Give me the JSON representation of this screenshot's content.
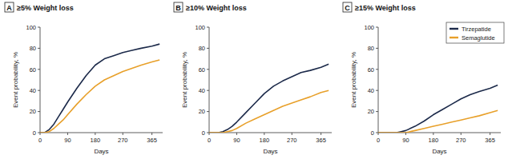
{
  "chart_data": [
    {
      "type": "line",
      "panel": "A",
      "title": "≥5% Weight loss",
      "x_label": "Days",
      "y_label": "Event probability, %",
      "x": [
        0,
        15,
        30,
        45,
        60,
        75,
        90,
        120,
        150,
        180,
        210,
        240,
        270,
        300,
        330,
        365,
        390
      ],
      "series": [
        {
          "name": "Tirzepatide",
          "color": "#1c2a4a",
          "values": [
            0,
            0,
            3,
            8,
            15,
            22,
            29,
            42,
            54,
            64,
            70,
            73,
            76,
            78,
            80,
            82,
            84
          ]
        },
        {
          "name": "Semaglutide",
          "color": "#e8a02a",
          "values": [
            0,
            0,
            1,
            4,
            8,
            12,
            17,
            27,
            36,
            44,
            50,
            54,
            58,
            61,
            64,
            67,
            69
          ]
        }
      ],
      "xlim": [
        0,
        400
      ],
      "xticks": [
        0,
        90,
        180,
        270,
        365
      ],
      "ylim": [
        0,
        100
      ],
      "yticks": [
        0,
        20,
        40,
        60,
        80,
        100
      ]
    },
    {
      "type": "line",
      "panel": "B",
      "title": "≥10% Weight loss",
      "x_label": "Days",
      "y_label": "Event probability, %",
      "x": [
        0,
        15,
        30,
        45,
        60,
        75,
        90,
        120,
        150,
        180,
        210,
        240,
        270,
        300,
        330,
        365,
        390
      ],
      "series": [
        {
          "name": "Tirzepatide",
          "color": "#1c2a4a",
          "values": [
            0,
            0,
            0,
            1,
            3,
            6,
            10,
            19,
            28,
            37,
            44,
            49,
            53,
            57,
            59,
            62,
            65
          ]
        },
        {
          "name": "Semaglutide",
          "color": "#e8a02a",
          "values": [
            0,
            0,
            0,
            0,
            1,
            2,
            4,
            9,
            13,
            17,
            21,
            25,
            28,
            31,
            34,
            38,
            40
          ]
        }
      ],
      "xlim": [
        0,
        400
      ],
      "xticks": [
        0,
        90,
        180,
        270,
        365
      ],
      "ylim": [
        0,
        100
      ],
      "yticks": [
        0,
        20,
        40,
        60,
        80,
        100
      ]
    },
    {
      "type": "line",
      "panel": "C",
      "title": "≥15% Weight loss",
      "x_label": "Days",
      "y_label": "Event probability, %",
      "x": [
        0,
        15,
        30,
        45,
        60,
        75,
        90,
        120,
        150,
        180,
        210,
        240,
        270,
        300,
        330,
        365,
        390
      ],
      "series": [
        {
          "name": "Tirzepatide",
          "color": "#1c2a4a",
          "values": [
            0,
            0,
            0,
            0,
            0,
            1,
            2,
            6,
            11,
            17,
            22,
            27,
            32,
            36,
            39,
            42,
            45
          ]
        },
        {
          "name": "Semaglutide",
          "color": "#e8a02a",
          "values": [
            0,
            0,
            0,
            0,
            0,
            0,
            0,
            2,
            4,
            6,
            8,
            10,
            12,
            14,
            16,
            19,
            21
          ]
        }
      ],
      "xlim": [
        0,
        400
      ],
      "xticks": [
        0,
        90,
        180,
        270,
        365
      ],
      "ylim": [
        0,
        100
      ],
      "yticks": [
        0,
        20,
        40,
        60,
        80,
        100
      ],
      "legend": "upper right"
    }
  ]
}
